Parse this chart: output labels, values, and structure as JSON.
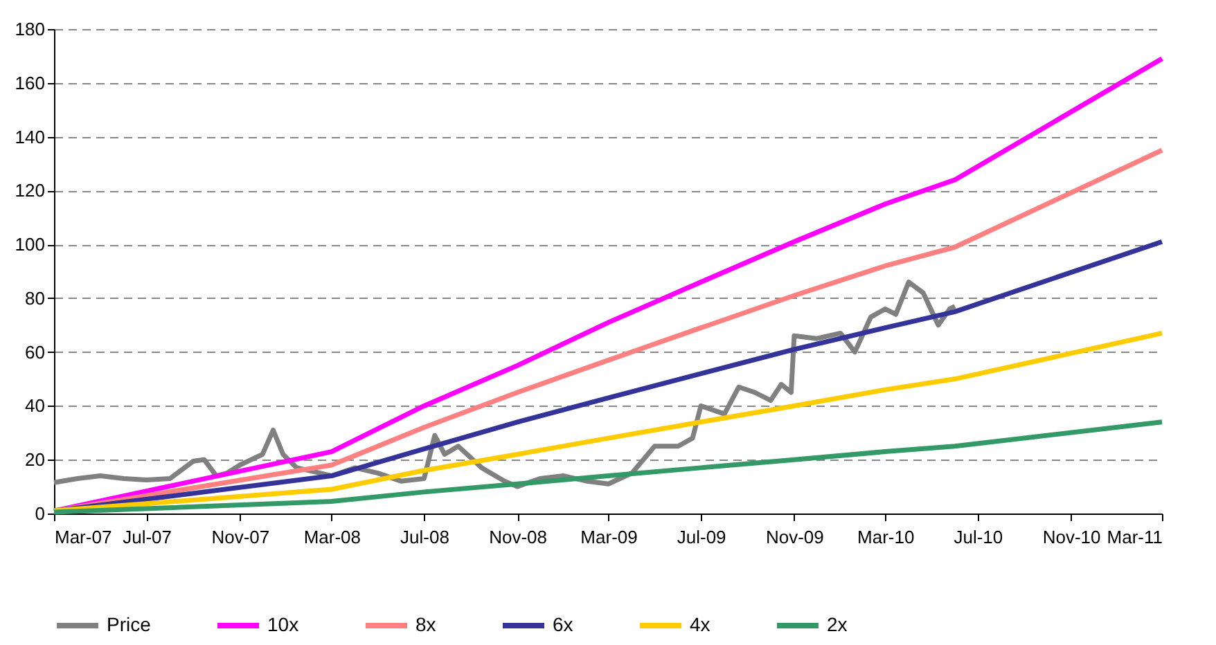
{
  "chart_data": {
    "type": "line",
    "xlim": [
      "2007-03-01",
      "2011-03-01"
    ],
    "ylim": [
      0,
      180
    ],
    "yticks": [
      0,
      20,
      40,
      60,
      80,
      100,
      120,
      140,
      160,
      180
    ],
    "xticks": [
      {
        "value": "2007-03-01",
        "label": "Mar-07"
      },
      {
        "value": "2007-07-01",
        "label": "Jul-07"
      },
      {
        "value": "2007-11-01",
        "label": "Nov-07"
      },
      {
        "value": "2008-03-01",
        "label": "Mar-08"
      },
      {
        "value": "2008-07-01",
        "label": "Jul-08"
      },
      {
        "value": "2008-11-01",
        "label": "Nov-08"
      },
      {
        "value": "2009-03-01",
        "label": "Mar-09"
      },
      {
        "value": "2009-07-01",
        "label": "Jul-09"
      },
      {
        "value": "2009-11-01",
        "label": "Nov-09"
      },
      {
        "value": "2010-03-01",
        "label": "Mar-10"
      },
      {
        "value": "2010-07-01",
        "label": "Jul-10"
      },
      {
        "value": "2010-11-01",
        "label": "Nov-10"
      },
      {
        "value": "2011-03-01",
        "label": "Mar-11"
      }
    ],
    "grid": "y",
    "legend": "bottom",
    "series": [
      {
        "name": "Price",
        "color": "#808080",
        "x": [
          "2007-03-01",
          "2007-04-01",
          "2007-05-01",
          "2007-06-01",
          "2007-07-01",
          "2007-08-01",
          "2007-09-01",
          "2007-09-15",
          "2007-10-01",
          "2007-10-15",
          "2007-11-01",
          "2007-12-01",
          "2007-12-15",
          "2007-12-28",
          "2008-01-15",
          "2008-02-15",
          "2008-03-01",
          "2008-04-01",
          "2008-05-01",
          "2008-06-01",
          "2008-07-01",
          "2008-07-15",
          "2008-07-28",
          "2008-08-15",
          "2008-09-15",
          "2008-10-15",
          "2008-11-01",
          "2008-12-01",
          "2009-01-01",
          "2009-02-01",
          "2009-03-01",
          "2009-04-01",
          "2009-05-01",
          "2009-06-01",
          "2009-06-20",
          "2009-07-01",
          "2009-08-01",
          "2009-08-20",
          "2009-09-10",
          "2009-10-01",
          "2009-10-15",
          "2009-10-28",
          "2009-11-01",
          "2009-12-01",
          "2010-01-01",
          "2010-01-20",
          "2010-02-10",
          "2010-03-01",
          "2010-03-15",
          "2010-04-01",
          "2010-04-20",
          "2010-05-10",
          "2010-05-25",
          "2010-06-01"
        ],
        "values": [
          11.5,
          13,
          14,
          13,
          12.5,
          13,
          19.5,
          20,
          14,
          15,
          18,
          22,
          31,
          22,
          17,
          15,
          14,
          17,
          15,
          12,
          13,
          29,
          22,
          25,
          17,
          12,
          10,
          13,
          14,
          12,
          11,
          15,
          25,
          25,
          28,
          40,
          37,
          47,
          45,
          42,
          48,
          45,
          66,
          65,
          67,
          60,
          73,
          76,
          74,
          86,
          82,
          70,
          76,
          77
        ]
      },
      {
        "name": "10x",
        "color": "#ff00ff",
        "x": [
          "2007-03-01",
          "2008-03-01",
          "2008-07-01",
          "2008-11-01",
          "2009-03-01",
          "2009-07-01",
          "2009-11-01",
          "2010-03-01",
          "2010-06-01",
          "2011-03-01"
        ],
        "values": [
          1,
          23,
          40,
          55,
          71,
          86,
          101,
          115,
          124,
          169
        ]
      },
      {
        "name": "8x",
        "color": "#ff8080",
        "x": [
          "2007-03-01",
          "2008-03-01",
          "2008-07-01",
          "2008-11-01",
          "2009-03-01",
          "2009-07-01",
          "2009-11-01",
          "2010-03-01",
          "2010-06-01",
          "2011-03-01"
        ],
        "values": [
          1,
          18,
          32,
          45,
          57,
          69,
          81,
          92,
          99,
          135
        ]
      },
      {
        "name": "6x",
        "color": "#333399",
        "x": [
          "2007-03-01",
          "2008-03-01",
          "2008-07-01",
          "2008-11-01",
          "2009-03-01",
          "2009-07-01",
          "2009-11-01",
          "2010-03-01",
          "2010-06-01",
          "2011-03-01"
        ],
        "values": [
          1,
          14,
          24,
          34,
          43,
          52,
          61,
          69,
          75,
          101
        ]
      },
      {
        "name": "4x",
        "color": "#ffcc00",
        "x": [
          "2007-03-01",
          "2008-03-01",
          "2008-07-01",
          "2008-11-01",
          "2009-03-01",
          "2009-07-01",
          "2009-11-01",
          "2010-03-01",
          "2010-06-01",
          "2011-03-01"
        ],
        "values": [
          1,
          9,
          16,
          22,
          28,
          34,
          40,
          46,
          50,
          67
        ]
      },
      {
        "name": "2x",
        "color": "#339966",
        "x": [
          "2007-03-01",
          "2008-03-01",
          "2008-07-01",
          "2008-11-01",
          "2009-03-01",
          "2009-07-01",
          "2009-11-01",
          "2010-03-01",
          "2010-06-01",
          "2011-03-01"
        ],
        "values": [
          0.5,
          4.5,
          8,
          11,
          14,
          17,
          20,
          23,
          25,
          34
        ]
      }
    ]
  }
}
